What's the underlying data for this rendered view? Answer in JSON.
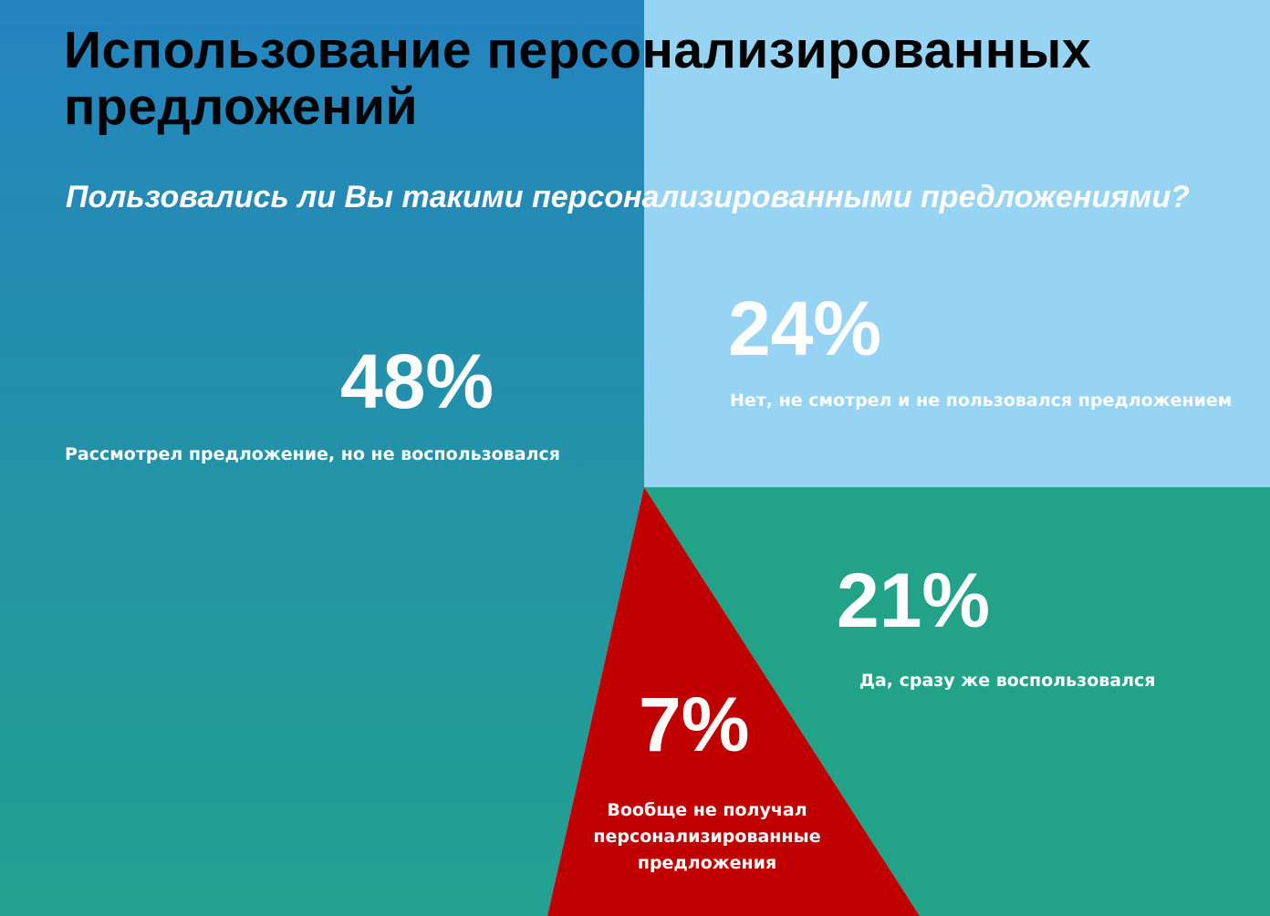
{
  "title": "Использование персонализированных предложений",
  "subtitle": "Пользовались ли Вы такими персонализированными предложениями?",
  "colors": {
    "seen_not_used_top": "#2484c0",
    "seen_not_used_bottom": "#22a18f",
    "not_seen": "#97d3f2",
    "used_immediately": "#22a387",
    "not_received": "#c00000",
    "title_text": "#000000",
    "label_text": "#ffffff"
  },
  "chart_data": {
    "type": "pie",
    "title": "Использование персонализированных предложений",
    "subtitle": "Пользовались ли Вы такими персонализированными предложениями?",
    "slices": [
      {
        "key": "seen_not_used",
        "value": 48,
        "value_label": "48%",
        "label": "Рассмотрел предложение, но не воспользовался"
      },
      {
        "key": "not_seen",
        "value": 24,
        "value_label": "24%",
        "label": "Нет, не смотрел и не пользовался предложением"
      },
      {
        "key": "used_immediately",
        "value": 21,
        "value_label": "21%",
        "label": "Да, сразу же воспользовался"
      },
      {
        "key": "not_received",
        "value": 7,
        "value_label": "7%",
        "label": "Вообще не получал персонализированные предложения"
      }
    ]
  }
}
